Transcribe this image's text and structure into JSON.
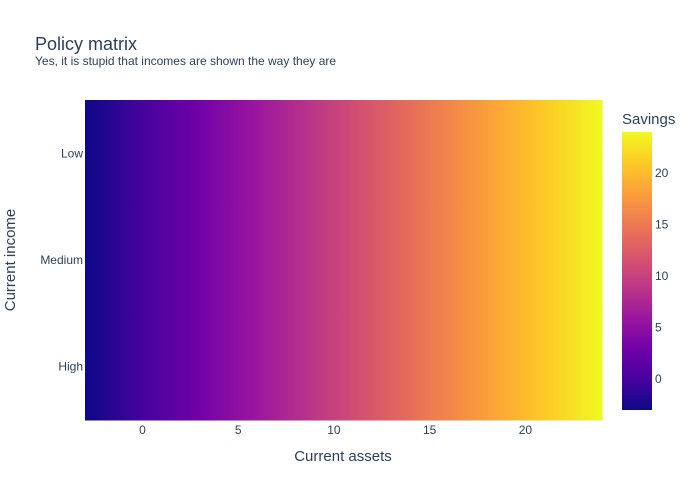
{
  "chart_data": {
    "type": "heatmap",
    "title": "Policy matrix",
    "subtitle": "Yes, it is stupid that incomes are shown the way they are",
    "xlabel": "Current assets",
    "ylabel": "Current income",
    "x_range": [
      -3,
      24
    ],
    "x_ticks": [
      0,
      5,
      10,
      15,
      20
    ],
    "y_categories": [
      "High",
      "Medium",
      "Low"
    ],
    "z_formula": "savings approx equal to current assets for every income level",
    "x_values": [
      -3,
      -2,
      -1,
      0,
      1,
      2,
      3,
      4,
      5,
      6,
      7,
      8,
      9,
      10,
      11,
      12,
      13,
      14,
      15,
      16,
      17,
      18,
      19,
      20,
      21,
      22,
      23,
      24
    ],
    "colorbar": {
      "title": "Savings",
      "range": [
        -3,
        24
      ],
      "ticks": [
        0,
        5,
        10,
        15,
        20
      ],
      "colorscale": [
        "#0d0887",
        "#46039f",
        "#7201a8",
        "#9c179e",
        "#bd3786",
        "#d8576b",
        "#ed7953",
        "#fb9f3a",
        "#fdca26",
        "#f0f921"
      ]
    },
    "grid": false
  }
}
